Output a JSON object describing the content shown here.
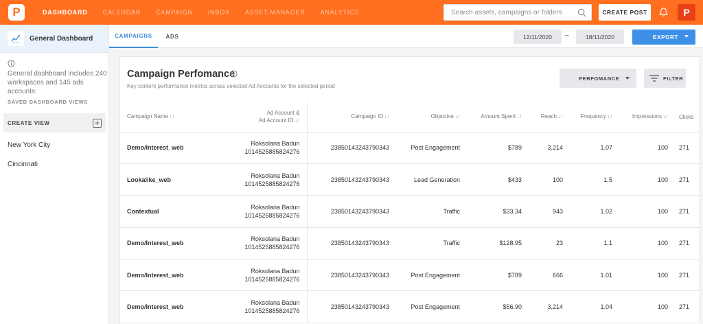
{
  "nav": {
    "logo": "P",
    "items": [
      {
        "label": "DASHBOARD",
        "active": true
      },
      {
        "label": "CALENDAR",
        "active": false
      },
      {
        "label": "CAMPAIGN",
        "active": false
      },
      {
        "label": "INBOX",
        "active": false
      },
      {
        "label": "ASSET MANAGER",
        "active": false
      },
      {
        "label": "ANALYTICS",
        "active": false
      }
    ],
    "search_placeholder": "Search assets, campaigns or folders",
    "create_post": "CREATE POST",
    "avatar": "P",
    "accent_color": "#ff6f1f"
  },
  "sidebar": {
    "title": "General Dashboard",
    "description": "General dashboard includes 240 workspaces and 145 ads accounts:",
    "saved_label": "SAVED DASHBOARD VIEWS",
    "create_view": "CREATE VIEW",
    "views": [
      "New York City",
      "Cincinnati"
    ]
  },
  "tabs": [
    {
      "label": "CAMPAIGNS",
      "active": true
    },
    {
      "label": "ADS",
      "active": false
    }
  ],
  "date_from": "12/11/2020",
  "date_sep": "–",
  "date_to": "18/11/2020",
  "export_label": "EXPORT",
  "card": {
    "title": "Campaign Perfomance",
    "subtitle": "Key content performance metrics across selected Ad Accounts for the selected period",
    "performance_label": "PERFOMANCE",
    "filter_label": "FILTER"
  },
  "table": {
    "columns": {
      "name": "Campaign Name",
      "account_1": "Ad Account &",
      "account_2": "Ad Account ID",
      "campaign_id": "Campaign ID",
      "objective": "Objective",
      "amount": "Amount Spent",
      "reach": "Reach",
      "frequency": "Frequency",
      "impressions": "Impressions",
      "clicks": "Clicks"
    },
    "sort_glyph": "↓↑",
    "rows": [
      {
        "name": "Demo/Interest_web",
        "account": "Roksolana Badun",
        "account_id": "1014525885824276",
        "campaign_id": "23850143243790343",
        "objective": "Post Engagement",
        "amount": "$789",
        "reach": "3,214",
        "frequency": "1.07",
        "impressions": "100",
        "clicks": "271"
      },
      {
        "name": "Lookalike_web",
        "account": "Roksolana Badun",
        "account_id": "1014525885824276",
        "campaign_id": "23850143243790343",
        "objective": "Lead Generation",
        "amount": "$433",
        "reach": "100",
        "frequency": "1.5",
        "impressions": "100",
        "clicks": "271"
      },
      {
        "name": "Contextual",
        "account": "Roksolana Badun",
        "account_id": "1014525885824276",
        "campaign_id": "23850143243790343",
        "objective": "Traffic",
        "amount": "$33.34",
        "reach": "943",
        "frequency": "1.02",
        "impressions": "100",
        "clicks": "271"
      },
      {
        "name": "Demo/Interest_web",
        "account": "Roksolana Badun",
        "account_id": "1014525885824276",
        "campaign_id": "23850143243790343",
        "objective": "Traffic",
        "amount": "$128.95",
        "reach": "23",
        "frequency": "1.1",
        "impressions": "100",
        "clicks": "271"
      },
      {
        "name": "Demo/Interest_web",
        "account": "Roksolana Badun",
        "account_id": "1014525885824276",
        "campaign_id": "23850143243790343",
        "objective": "Post Engagement",
        "amount": "$789",
        "reach": "666",
        "frequency": "1.01",
        "impressions": "100",
        "clicks": "271"
      },
      {
        "name": "Demo/Interest_web",
        "account": "Roksolana Badun",
        "account_id": "1014525885824276",
        "campaign_id": "23850143243790343",
        "objective": "Post Engagement",
        "amount": "$56.90",
        "reach": "3,214",
        "frequency": "1.04",
        "impressions": "100",
        "clicks": "271"
      }
    ]
  }
}
